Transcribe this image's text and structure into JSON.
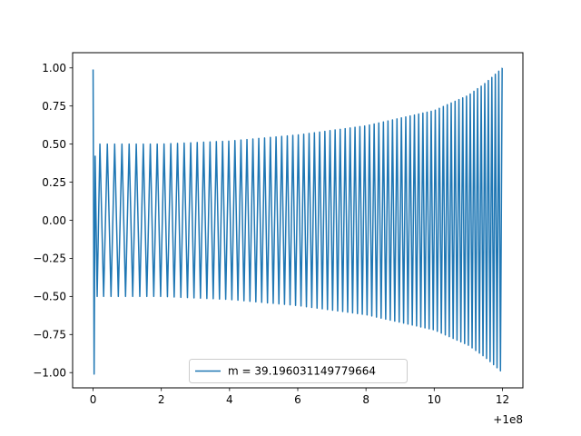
{
  "chart_data": {
    "type": "line",
    "title": "",
    "xlabel": "",
    "ylabel": "",
    "x_offset_label": "+1e8",
    "xlim": [
      -0.6,
      12.6
    ],
    "ylim": [
      -1.1,
      1.1
    ],
    "x_ticks": [
      0,
      2,
      4,
      6,
      8,
      10,
      12
    ],
    "x_tick_labels": [
      "0",
      "2",
      "4",
      "6",
      "8",
      "10",
      "12"
    ],
    "y_ticks": [
      1.0,
      0.75,
      0.5,
      0.25,
      0.0,
      -0.25,
      -0.5,
      -0.75,
      -1.0
    ],
    "y_tick_labels": [
      "1.00",
      "0.75",
      "0.50",
      "0.25",
      "0.00",
      "−0.25",
      "−0.50",
      "−0.75",
      "−1.00"
    ],
    "grid": false,
    "legend_position": "lower-center",
    "colors": {
      "series": "#1f77b4"
    },
    "series": [
      {
        "name": "m = 39.196031149779664",
        "shape": "oscillation with envelope growing from ±0.5 near x=0.2 to ±1.0 at x=12; initial transient spike to ±1.0 at x≈0",
        "x_start": 0.0,
        "x_end": 12.0,
        "envelope": [
          {
            "x": 0.2,
            "amp": 0.5
          },
          {
            "x": 2.0,
            "amp": 0.5
          },
          {
            "x": 4.0,
            "amp": 0.52
          },
          {
            "x": 6.0,
            "amp": 0.56
          },
          {
            "x": 8.0,
            "amp": 0.62
          },
          {
            "x": 10.0,
            "amp": 0.72
          },
          {
            "x": 11.0,
            "amp": 0.82
          },
          {
            "x": 11.5,
            "amp": 0.9
          },
          {
            "x": 12.0,
            "amp": 1.0
          }
        ],
        "initial_spike": [
          {
            "x": 0.0,
            "y": 0.99
          },
          {
            "x": 0.03,
            "y": -1.01
          },
          {
            "x": 0.06,
            "y": 0.42
          },
          {
            "x": 0.12,
            "y": -0.5
          }
        ]
      }
    ]
  }
}
